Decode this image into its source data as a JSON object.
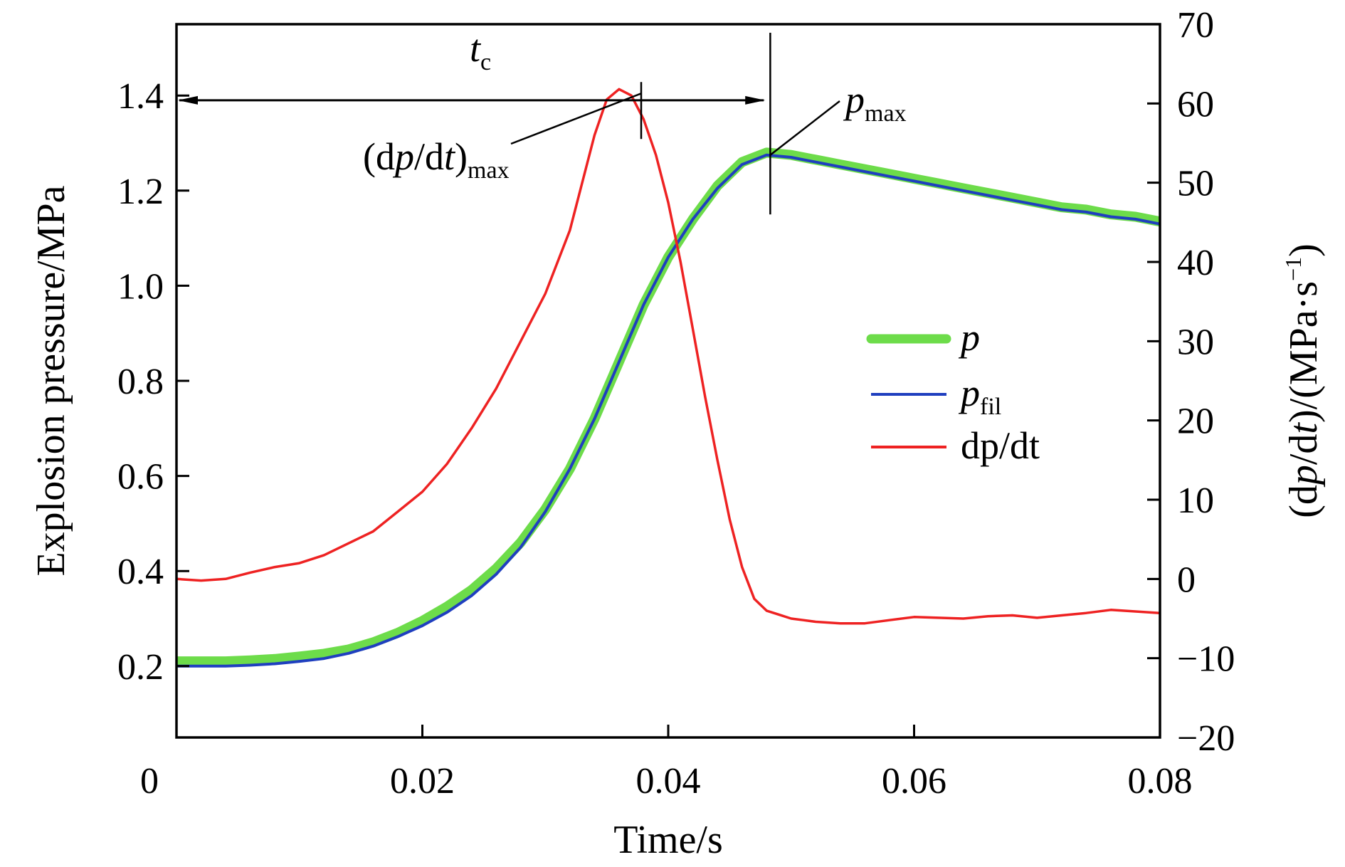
{
  "chart_data": {
    "type": "line",
    "xlabel": "Time/s",
    "ylabel_left": "Explosion pressure/MPa",
    "ylabel_right": "(dp/dt)/(MPa·s⁻¹)",
    "ylabel_right_parts": {
      "a": "(d",
      "b": "p",
      "c": "/d",
      "d": "t",
      "e": ")/(MPa·s",
      "sup": "−1",
      "f": ")"
    },
    "xlim": [
      0,
      0.08
    ],
    "ylim_left": [
      0.05,
      1.55
    ],
    "ylim_right": [
      -20,
      70
    ],
    "x_ticks": [
      0,
      0.02,
      0.04,
      0.06,
      0.08
    ],
    "x_tick_labels": [
      "0",
      "0.02",
      "0.04",
      "0.06",
      "0.08"
    ],
    "y_left_ticks": [
      0.2,
      0.4,
      0.6,
      0.8,
      1.0,
      1.2,
      1.4
    ],
    "y_left_tick_labels": [
      "0.2",
      "0.4",
      "0.6",
      "0.8",
      "1.0",
      "1.2",
      "1.4"
    ],
    "y_right_ticks": [
      -20,
      -10,
      0,
      10,
      20,
      30,
      40,
      50,
      60,
      70
    ],
    "y_right_tick_labels": [
      "−20",
      "−10",
      "0",
      "10",
      "20",
      "30",
      "40",
      "50",
      "60",
      "70"
    ],
    "grid": false,
    "legend": "center-right",
    "legend_entries": [
      {
        "key": "p",
        "main": "p",
        "sub": "",
        "color": "#6ddc4a"
      },
      {
        "key": "p_fil",
        "main": "p",
        "sub": "fil",
        "color": "#1f3fbf"
      },
      {
        "key": "dpdt",
        "main": "dp/dt",
        "sub": "",
        "color": "#ee2222"
      }
    ],
    "series": [
      {
        "name": "p",
        "axis": "left",
        "color": "#6ddc4a",
        "x": [
          0,
          0.002,
          0.004,
          0.006,
          0.008,
          0.01,
          0.012,
          0.014,
          0.016,
          0.018,
          0.02,
          0.022,
          0.024,
          0.026,
          0.028,
          0.03,
          0.032,
          0.034,
          0.036,
          0.038,
          0.04,
          0.042,
          0.044,
          0.046,
          0.048,
          0.05,
          0.052,
          0.054,
          0.056,
          0.058,
          0.06,
          0.062,
          0.064,
          0.066,
          0.068,
          0.07,
          0.072,
          0.074,
          0.076,
          0.078,
          0.08
        ],
        "y": [
          0.21,
          0.21,
          0.21,
          0.212,
          0.215,
          0.22,
          0.226,
          0.235,
          0.25,
          0.27,
          0.295,
          0.325,
          0.36,
          0.405,
          0.46,
          0.53,
          0.615,
          0.72,
          0.84,
          0.96,
          1.06,
          1.14,
          1.21,
          1.26,
          1.28,
          1.275,
          1.265,
          1.255,
          1.245,
          1.235,
          1.225,
          1.215,
          1.205,
          1.195,
          1.185,
          1.175,
          1.165,
          1.16,
          1.15,
          1.145,
          1.135
        ]
      },
      {
        "name": "p_fil",
        "axis": "left",
        "color": "#1f3fbf",
        "x": [
          0,
          0.002,
          0.004,
          0.006,
          0.008,
          0.01,
          0.012,
          0.014,
          0.016,
          0.018,
          0.02,
          0.022,
          0.024,
          0.026,
          0.028,
          0.03,
          0.032,
          0.034,
          0.036,
          0.038,
          0.04,
          0.042,
          0.044,
          0.046,
          0.048,
          0.05,
          0.052,
          0.054,
          0.056,
          0.058,
          0.06,
          0.062,
          0.064,
          0.066,
          0.068,
          0.07,
          0.072,
          0.074,
          0.076,
          0.078,
          0.08
        ],
        "y": [
          0.2,
          0.2,
          0.2,
          0.202,
          0.205,
          0.21,
          0.216,
          0.227,
          0.242,
          0.262,
          0.285,
          0.313,
          0.348,
          0.393,
          0.45,
          0.525,
          0.615,
          0.72,
          0.84,
          0.96,
          1.06,
          1.14,
          1.205,
          1.255,
          1.275,
          1.27,
          1.26,
          1.25,
          1.24,
          1.23,
          1.22,
          1.21,
          1.2,
          1.19,
          1.18,
          1.17,
          1.16,
          1.155,
          1.145,
          1.14,
          1.13
        ]
      },
      {
        "name": "dp/dt",
        "axis": "right",
        "color": "#ee2222",
        "x": [
          0,
          0.002,
          0.004,
          0.006,
          0.008,
          0.01,
          0.012,
          0.014,
          0.016,
          0.018,
          0.02,
          0.022,
          0.024,
          0.026,
          0.028,
          0.03,
          0.032,
          0.033,
          0.034,
          0.035,
          0.036,
          0.037,
          0.038,
          0.039,
          0.04,
          0.041,
          0.042,
          0.043,
          0.044,
          0.045,
          0.046,
          0.047,
          0.048,
          0.049,
          0.05,
          0.051,
          0.052,
          0.054,
          0.056,
          0.058,
          0.06,
          0.062,
          0.064,
          0.066,
          0.068,
          0.07,
          0.072,
          0.074,
          0.076,
          0.078,
          0.08
        ],
        "y": [
          0,
          -0.2,
          0,
          0.8,
          1.5,
          2,
          3,
          4.5,
          6,
          8.5,
          11,
          14.5,
          19,
          24,
          30,
          36,
          44,
          50,
          56,
          60.5,
          61.8,
          61,
          58,
          53.5,
          47.5,
          40,
          31.5,
          23,
          15,
          7.5,
          1.5,
          -2.5,
          -4,
          -4.5,
          -5,
          -5.2,
          -5.4,
          -5.6,
          -5.6,
          -5.2,
          -4.8,
          -4.9,
          -5,
          -4.7,
          -4.6,
          -4.9,
          -4.6,
          -4.3,
          -3.9,
          -4.1,
          -4.3
        ]
      }
    ],
    "annotations": {
      "tc_label": {
        "main": "t",
        "sub": "c"
      },
      "tc_span": [
        0,
        0.048
      ],
      "tc_arrow_y": 1.39,
      "dpdt_max_label": {
        "open": "(d",
        "p": "p",
        "mid": "/d",
        "t": "t",
        "close": ")",
        "sub": "max"
      },
      "dpdt_max_x": 0.0378,
      "pmax_label": {
        "main": "p",
        "sub": "max"
      },
      "pmax_x": 0.0483
    }
  }
}
